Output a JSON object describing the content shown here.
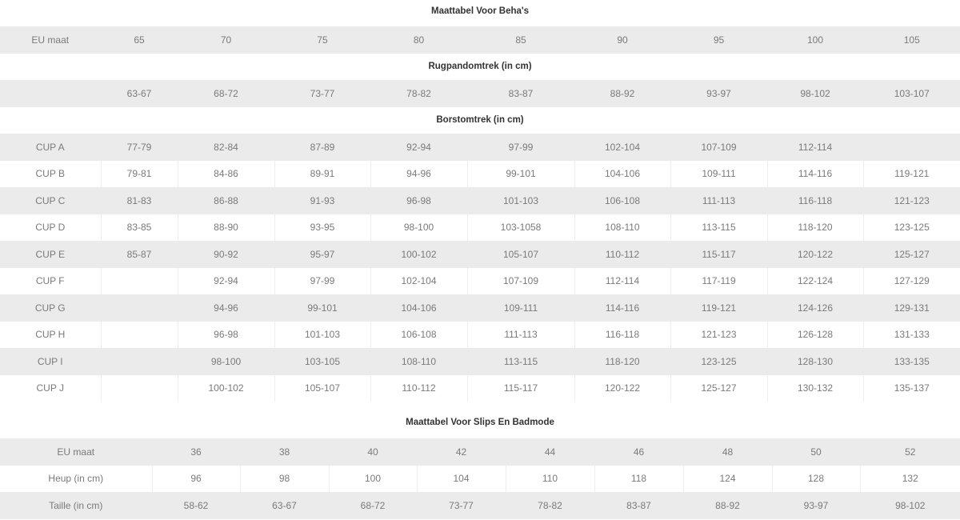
{
  "bra": {
    "title": "Maattabel Voor Beha's",
    "eu_label": "EU maat",
    "eu_sizes": [
      "65",
      "70",
      "75",
      "80",
      "85",
      "90",
      "95",
      "100",
      "105"
    ],
    "band_heading": "Rugpandomtrek (in cm)",
    "band_values": [
      "63-67",
      "68-72",
      "73-77",
      "78-82",
      "83-87",
      "88-92",
      "93-97",
      "98-102",
      "103-107"
    ],
    "bust_heading": "Borstomtrek (in cm)",
    "cups": [
      {
        "label": "CUP A",
        "values": [
          "77-79",
          "82-84",
          "87-89",
          "92-94",
          "97-99",
          "102-104",
          "107-109",
          "112-114",
          ""
        ]
      },
      {
        "label": "CUP B",
        "values": [
          "79-81",
          "84-86",
          "89-91",
          "94-96",
          "99-101",
          "104-106",
          "109-111",
          "114-116",
          "119-121"
        ]
      },
      {
        "label": "CUP C",
        "values": [
          "81-83",
          "86-88",
          "91-93",
          "96-98",
          "101-103",
          "106-108",
          "111-113",
          "116-118",
          "121-123"
        ]
      },
      {
        "label": "CUP D",
        "values": [
          "83-85",
          "88-90",
          "93-95",
          "98-100",
          "103-1058",
          "108-110",
          "113-115",
          "118-120",
          "123-125"
        ]
      },
      {
        "label": "CUP E",
        "values": [
          "85-87",
          "90-92",
          "95-97",
          "100-102",
          "105-107",
          "110-112",
          "115-117",
          "120-122",
          "125-127"
        ]
      },
      {
        "label": "CUP F",
        "values": [
          "",
          "92-94",
          "97-99",
          "102-104",
          "107-109",
          "112-114",
          "117-119",
          "122-124",
          "127-129"
        ]
      },
      {
        "label": "CUP G",
        "values": [
          "",
          "94-96",
          "99-101",
          "104-106",
          "109-111",
          "114-116",
          "119-121",
          "124-126",
          "129-131"
        ]
      },
      {
        "label": "CUP H",
        "values": [
          "",
          "96-98",
          "101-103",
          "106-108",
          "111-113",
          "116-118",
          "121-123",
          "126-128",
          "131-133"
        ]
      },
      {
        "label": "CUP I",
        "values": [
          "",
          "98-100",
          "103-105",
          "108-110",
          "113-115",
          "118-120",
          "123-125",
          "128-130",
          "133-135"
        ]
      },
      {
        "label": "CUP J",
        "values": [
          "",
          "100-102",
          "105-107",
          "110-112",
          "115-117",
          "120-122",
          "125-127",
          "130-132",
          "135-137"
        ]
      }
    ]
  },
  "briefs": {
    "title": "Maattabel Voor Slips En Badmode",
    "rows": [
      {
        "label": "EU maat",
        "values": [
          "36",
          "38",
          "40",
          "42",
          "44",
          "46",
          "48",
          "50",
          "52"
        ]
      },
      {
        "label": "Heup (in cm)",
        "values": [
          "96",
          "98",
          "100",
          "104",
          "110",
          "118",
          "124",
          "128",
          "132"
        ]
      },
      {
        "label": "Taille (in cm)",
        "values": [
          "58-62",
          "63-67",
          "68-72",
          "73-77",
          "78-82",
          "83-87",
          "88-92",
          "93-97",
          "98-102"
        ]
      }
    ]
  }
}
